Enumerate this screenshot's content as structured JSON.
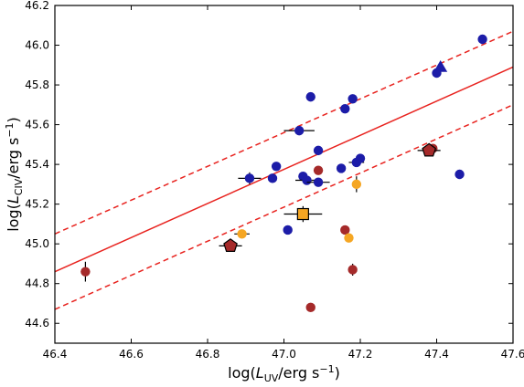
{
  "chart_data": {
    "type": "scatter",
    "xlabel_parts": [
      "log(",
      "L",
      "UV",
      "/erg s",
      "−1",
      ")"
    ],
    "ylabel_parts": [
      "log(",
      "L",
      "CIV",
      "/erg s",
      "−1",
      ")"
    ],
    "xlim": [
      46.4,
      47.6
    ],
    "ylim": [
      44.5,
      46.2
    ],
    "xticks": [
      46.4,
      46.6,
      46.8,
      47.0,
      47.2,
      47.4,
      47.6
    ],
    "yticks": [
      44.6,
      44.8,
      45.0,
      45.2,
      45.4,
      45.6,
      45.8,
      46.0,
      46.2
    ],
    "xtick_labels": [
      "46.4",
      "46.6",
      "46.8",
      "47.0",
      "47.2",
      "47.4",
      "47.6"
    ],
    "ytick_labels": [
      "44.6",
      "44.8",
      "45.0",
      "45.2",
      "45.4",
      "45.6",
      "45.8",
      "46.0",
      "46.2"
    ],
    "colors": {
      "blue": "#1c1ca8",
      "dark_red": "#a52a2a",
      "orange": "#f5a623",
      "fit": "#e8231f"
    },
    "fit_lines": [
      {
        "style": "solid",
        "x": [
          46.4,
          47.6
        ],
        "y": [
          44.86,
          45.89
        ]
      },
      {
        "style": "dashed",
        "x": [
          46.4,
          47.6
        ],
        "y": [
          45.05,
          46.07
        ]
      },
      {
        "style": "dashed",
        "x": [
          46.4,
          47.6
        ],
        "y": [
          44.67,
          45.7
        ]
      }
    ],
    "series": [
      {
        "color": "blue",
        "marker": "circle",
        "points": [
          {
            "x": 46.91,
            "y": 45.33,
            "xerr": 0.03,
            "yerr": 0.03
          },
          {
            "x": 46.97,
            "y": 45.33
          },
          {
            "x": 46.98,
            "y": 45.39
          },
          {
            "x": 47.01,
            "y": 45.07
          },
          {
            "x": 47.04,
            "y": 45.57,
            "xerr": 0.04
          },
          {
            "x": 47.05,
            "y": 45.34
          },
          {
            "x": 47.06,
            "y": 45.32,
            "xerr": 0.03
          },
          {
            "x": 47.07,
            "y": 45.74
          },
          {
            "x": 47.09,
            "y": 45.31,
            "xerr": 0.03
          },
          {
            "x": 47.09,
            "y": 45.47
          },
          {
            "x": 47.15,
            "y": 45.38
          },
          {
            "x": 47.16,
            "y": 45.68
          },
          {
            "x": 47.18,
            "y": 45.73
          },
          {
            "x": 47.19,
            "y": 45.41,
            "xerr": 0.02
          },
          {
            "x": 47.2,
            "y": 45.43
          },
          {
            "x": 47.4,
            "y": 45.86
          },
          {
            "x": 47.46,
            "y": 45.35
          },
          {
            "x": 47.52,
            "y": 46.03
          }
        ]
      },
      {
        "color": "blue",
        "marker": "triangle",
        "points": [
          {
            "x": 47.41,
            "y": 45.89
          }
        ]
      },
      {
        "color": "dark_red",
        "marker": "circle",
        "points": [
          {
            "x": 46.48,
            "y": 44.86,
            "yerr": 0.05
          },
          {
            "x": 47.07,
            "y": 44.68
          },
          {
            "x": 47.09,
            "y": 45.37
          },
          {
            "x": 47.16,
            "y": 45.07
          },
          {
            "x": 47.18,
            "y": 44.87,
            "yerr": 0.03
          },
          {
            "x": 47.39,
            "y": 45.48
          }
        ]
      },
      {
        "color": "dark_red",
        "marker": "pentagon",
        "points": [
          {
            "x": 46.86,
            "y": 44.99,
            "xerr": 0.03
          },
          {
            "x": 47.38,
            "y": 45.47,
            "xerr": 0.03
          }
        ]
      },
      {
        "color": "orange",
        "marker": "circle",
        "points": [
          {
            "x": 46.89,
            "y": 45.05,
            "xerr": 0.02
          },
          {
            "x": 47.17,
            "y": 45.03
          },
          {
            "x": 47.19,
            "y": 45.3,
            "yerr": 0.04
          }
        ]
      },
      {
        "color": "orange",
        "marker": "square",
        "points": [
          {
            "x": 47.05,
            "y": 45.15,
            "xerr": 0.05,
            "yerr": 0.04
          }
        ]
      }
    ]
  }
}
